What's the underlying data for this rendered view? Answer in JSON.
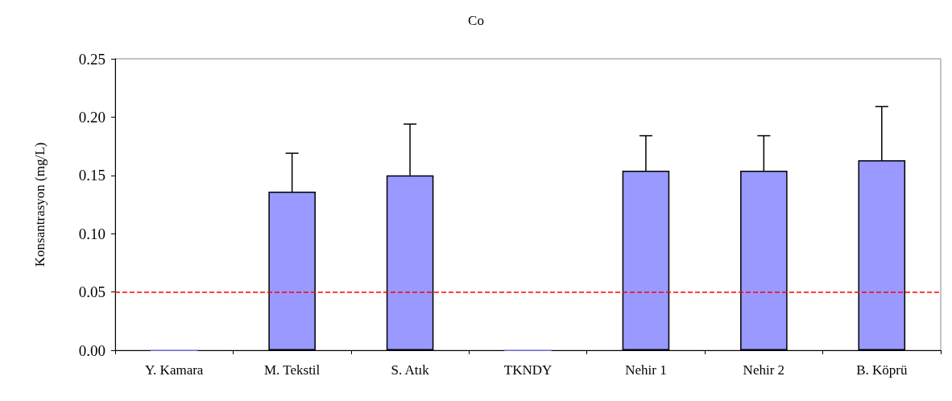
{
  "chart_data": {
    "type": "bar",
    "title": "Co",
    "ylabel": "Konsantrasyon (mg/L)",
    "categories": [
      "Y. Kamara",
      "M. Tekstil",
      "S. Atık",
      "TKNDY",
      "Nehir 1",
      "Nehir 2",
      "B. Köprü"
    ],
    "values": [
      0,
      0.136,
      0.15,
      0,
      0.154,
      0.154,
      0.163
    ],
    "errors": [
      null,
      [
        0.136,
        0.169
      ],
      [
        0.15,
        0.194
      ],
      null,
      [
        0.154,
        0.184
      ],
      [
        0.154,
        0.184
      ],
      [
        0.163,
        0.209
      ]
    ],
    "color": "#9999ff",
    "ylim": [
      0,
      0.25
    ],
    "yticks": [
      {
        "value": 0,
        "label": "0.00"
      },
      {
        "value": 0.05,
        "label": "0.05"
      },
      {
        "value": 0.1,
        "label": "0.10"
      },
      {
        "value": 0.15,
        "label": "0.15"
      },
      {
        "value": 0.2,
        "label": "0.20"
      },
      {
        "value": 0.25,
        "label": "0.25"
      }
    ],
    "ref_lines": [
      {
        "axis": "y",
        "value": 0.05,
        "label": null,
        "color": "#ff0000",
        "line_style": "dashed"
      }
    ],
    "grid": false
  }
}
